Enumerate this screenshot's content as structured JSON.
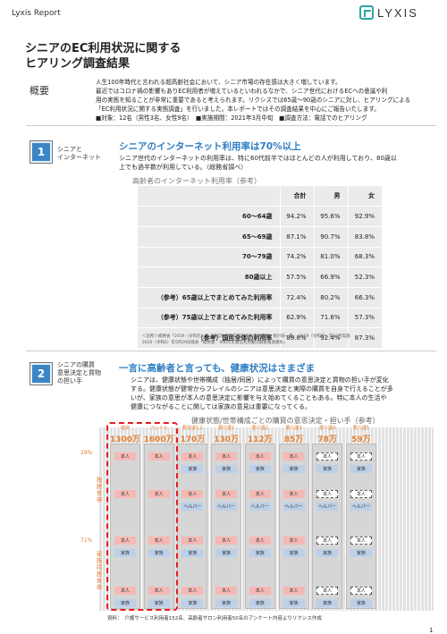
{
  "header": {
    "report_label": "Lyxis Report",
    "logo_text": "LYXIS"
  },
  "title": {
    "line1": "シニアのEC利用状況に関する",
    "line2": "ヒアリング調査結果"
  },
  "gaiyo": {
    "label": "概要",
    "lines": [
      "人生100年時代と言われる超高齢社会において、シニア市場の存在感は大きく増しています。",
      "最近ではコロナ禍の影響もありEC利用者が増えているといわれるなかで、シニア世代におけるECへの意識や利",
      "用の実態を知ることが非常に重要であると考えられます。リクシスでは65歳～90歳のシニアに対し、ヒアリングによる",
      "「EC利用状況に関する実態調査」を行いました。本レポートではその調査結果を中心にご報告いたします。",
      "■対象：12名（男性3名、女性9名）　■実施期間：2021年3月中旬　■調査方法：電話でのヒアリング"
    ]
  },
  "section1": {
    "number": "1",
    "side_line1": "シニアと",
    "side_line2": "インターネット",
    "heading": "シニアのインターネット利用率は70%以上",
    "body_line1": "シニア世代のインターネットの利用率は、特に60代前半ではほとんどの人が利用しており、80歳以",
    "body_line2": "上でも過半数が利用している。（総務省調べ）",
    "table_caption": "高齢者のインターネット利用率（参考）",
    "table": {
      "headers": [
        "合計",
        "男",
        "女"
      ],
      "rows": [
        {
          "label": "60～64歳",
          "values": [
            "94.2%",
            "95.6%",
            "92.9%"
          ]
        },
        {
          "label": "65～69歳",
          "values": [
            "87.1%",
            "90.7%",
            "83.8%"
          ]
        },
        {
          "label": "70～79歳",
          "values": [
            "74.2%",
            "81.0%",
            "68.3%"
          ]
        },
        {
          "label": "80歳以上",
          "values": [
            "57.5%",
            "66.9%",
            "52.3%"
          ]
        },
        {
          "label": "（参考）65歳以上でまとめてみた利用率",
          "values": [
            "72.4%",
            "80.2%",
            "66.3%"
          ]
        },
        {
          "label": "（参考）75歳以上でまとめてみた利用率",
          "values": [
            "62.9%",
            "71.6%",
            "57.3%"
          ]
        },
        {
          "label": "（参考）国民全体の利用率",
          "values": [
            "89.8%",
            "92.4%",
            "87.3%"
          ]
        }
      ]
    },
    "source_line1": "＜出所＞総務省「2019（令和元）年『通信利用動向調査報告書世帯編』統計表一覧」,2019（令和元）年12月実施",
    "source_line2": "2020（令和2）年5月29日発表「総務省：令和元年通信利用動向調査報道資料」"
  },
  "section2": {
    "number": "2",
    "side_line1": "シニアの購買",
    "side_line2": "意思決定と買物",
    "side_line3": "の担い手",
    "heading": "一言に高齢者と言っても、健康状況はさまざま",
    "body_lines": [
      "シニアは、健康状態や世帯構成（独居/同居）によって購買の意思決定と買物の担い手が変化",
      "する。健康状態が健常からフレイルのシニアは意思決定と実際の購買を自身で行えることが多",
      "いが、家族の意思が本人の意思決定に影響を与え始めてくることもある。特に本人の生活や",
      "健康につながることに関しては家族の意見は重要になってくる。"
    ],
    "chart_title": "健康状態/世帯構成ごとの購買の意思決定・担い手（参考）",
    "pct_top": "29%",
    "pct_bottom": "71%",
    "vlabel_top": "独居世帯",
    "vlabel_bottom": "家族同居世帯",
    "columns": [
      {
        "head": "健常",
        "count": "1300万"
      },
      {
        "head": "フレイル",
        "count": "1600万"
      },
      {
        "head": "要支援1,2",
        "count": "170万"
      },
      {
        "head": "要介護1",
        "count": "130万"
      },
      {
        "head": "要介護2",
        "count": "112万"
      },
      {
        "head": "要介護3",
        "count": "85万"
      },
      {
        "head": "要介護4",
        "count": "78万"
      },
      {
        "head": "要介護5",
        "count": "59万"
      }
    ],
    "labels": {
      "self": "本人",
      "family": "家族",
      "helper": "ヘルパー"
    }
  },
  "footer": {
    "source": "資料：　介護サービス利用者152名、高齢者サロン利用者50名のアンケート内容よりリクシス作成",
    "page": "1"
  },
  "colors": {
    "accent_blue": "#2e7dc2",
    "accent_orange": "#e38033",
    "highlight_red": "#e51c1c"
  }
}
